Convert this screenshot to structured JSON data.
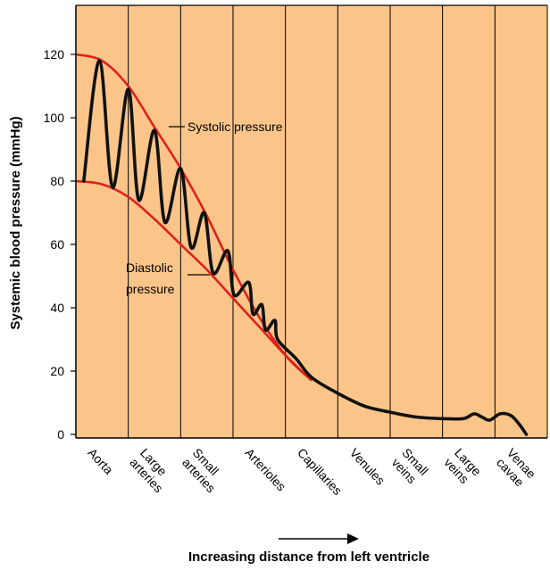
{
  "chart_data": {
    "type": "line",
    "xlabel": "Increasing distance from left ventricle",
    "ylabel": "Systemic blood pressure (mmHg)",
    "ylim": [
      0,
      130
    ],
    "yticks": [
      0,
      20,
      40,
      60,
      80,
      100,
      120
    ],
    "grid": "vertical separators between vessel segments",
    "categories": [
      "Aorta",
      "Large arteries",
      "Small arteries",
      "Arterioles",
      "Capillaries",
      "Venules",
      "Small veins",
      "Large veins",
      "Venae cavae"
    ],
    "category_label_lines": [
      [
        "Aorta"
      ],
      [
        "Large",
        "arteries"
      ],
      [
        "Small",
        "arteries"
      ],
      [
        "Arterioles"
      ],
      [
        "Capillaries"
      ],
      [
        "Venules"
      ],
      [
        "Small",
        "veins"
      ],
      [
        "Large",
        "veins"
      ],
      [
        "Venae",
        "cavae"
      ]
    ],
    "series": [
      {
        "name": "Systolic pressure",
        "color": "#e0201b",
        "x": [
          0,
          0.5,
          1.0,
          1.5,
          2.0,
          2.5,
          3.0,
          3.5,
          4.0,
          4.5
        ],
        "y": [
          120,
          118,
          110,
          97,
          84,
          69,
          52,
          37,
          25,
          17
        ]
      },
      {
        "name": "Diastolic pressure",
        "color": "#e0201b",
        "x": [
          0,
          0.5,
          1.0,
          1.5,
          2.0,
          2.5,
          3.0,
          3.5,
          4.0,
          4.5
        ],
        "y": [
          80,
          79,
          75,
          68,
          60,
          52,
          43,
          34,
          25,
          17
        ]
      },
      {
        "name": "Pressure",
        "color": "#111111",
        "peaks_x": [
          0.45,
          1.0,
          1.5,
          2.0,
          2.45,
          2.9,
          3.3,
          3.55,
          3.8
        ],
        "peaks_y": [
          118,
          109,
          96,
          84,
          70,
          58,
          48,
          41,
          36
        ],
        "troughs_x": [
          0.7,
          1.2,
          1.7,
          2.2,
          2.62,
          3.02,
          3.38,
          3.62,
          3.85
        ],
        "troughs_y": [
          78,
          74,
          67,
          59,
          51,
          44,
          38,
          33,
          30
        ],
        "x": [
          4.2,
          4.5,
          5.0,
          5.5,
          6.0,
          6.5,
          7.0,
          7.4,
          7.6,
          7.75,
          7.9,
          8.1,
          8.3,
          8.45,
          8.6
        ],
        "y": [
          24,
          18,
          13,
          9,
          7,
          5.5,
          5,
          5,
          6.5,
          5.5,
          4.5,
          6.5,
          6,
          3.5,
          0
        ]
      }
    ],
    "annotations": [
      "Systolic pressure",
      "Diastolic",
      "pressure"
    ],
    "background_color": "#fbc58a"
  }
}
